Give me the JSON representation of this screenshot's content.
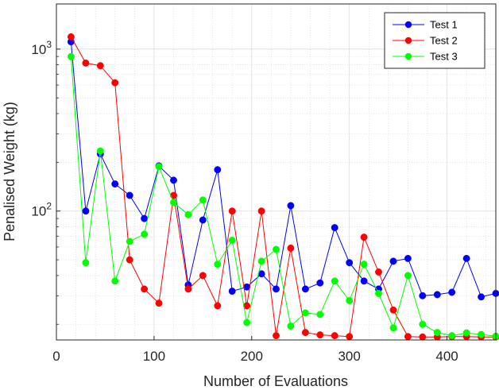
{
  "chart_data": {
    "type": "line",
    "xlabel": "Number of Evaluations",
    "ylabel": "Penalised Weight (kg)",
    "xlim": [
      0,
      450
    ],
    "ylim": [
      16,
      1900
    ],
    "yscale": "log",
    "grid": true,
    "minor_grid": true,
    "legend_position": "top-right",
    "x_ticks": [
      0,
      100,
      200,
      300,
      400
    ],
    "y_ticks": [
      {
        "value": 100,
        "base": "10",
        "exp": "2"
      },
      {
        "value": 1000,
        "base": "10",
        "exp": "3"
      }
    ],
    "x": [
      15,
      30,
      45,
      60,
      75,
      90,
      105,
      120,
      135,
      150,
      165,
      180,
      195,
      210,
      225,
      240,
      255,
      270,
      285,
      300,
      315,
      330,
      345,
      360,
      375,
      390,
      405,
      420,
      435,
      450
    ],
    "series": [
      {
        "name": "Test 1",
        "color": "#0000ff",
        "values": [
          1110,
          100,
          225,
          147,
          125,
          90,
          190,
          155,
          35,
          88,
          180,
          32,
          34,
          41,
          33,
          108,
          33,
          36,
          79,
          48,
          37,
          33,
          49,
          51,
          30,
          30.5,
          31.5,
          51,
          29.5,
          31
        ]
      },
      {
        "name": "Test 2",
        "color": "#ff0000",
        "values": [
          1190,
          820,
          790,
          620,
          50,
          33,
          27,
          125,
          33,
          40,
          26,
          100,
          26,
          100,
          17,
          59,
          17.8,
          17.2,
          17,
          16.8,
          69,
          42,
          24.5,
          16.8,
          16.7,
          16.7,
          16.8,
          16.8,
          16.7,
          16.7
        ]
      },
      {
        "name": "Test 3",
        "color": "#00ff00",
        "values": [
          900,
          48,
          235,
          37,
          65,
          72,
          188,
          113,
          95,
          117,
          47,
          66,
          20.5,
          49,
          58,
          19.5,
          23.5,
          23,
          37,
          28,
          47,
          31,
          19,
          40,
          20,
          17.8,
          17,
          17.7,
          17.3,
          16.9
        ]
      }
    ]
  }
}
